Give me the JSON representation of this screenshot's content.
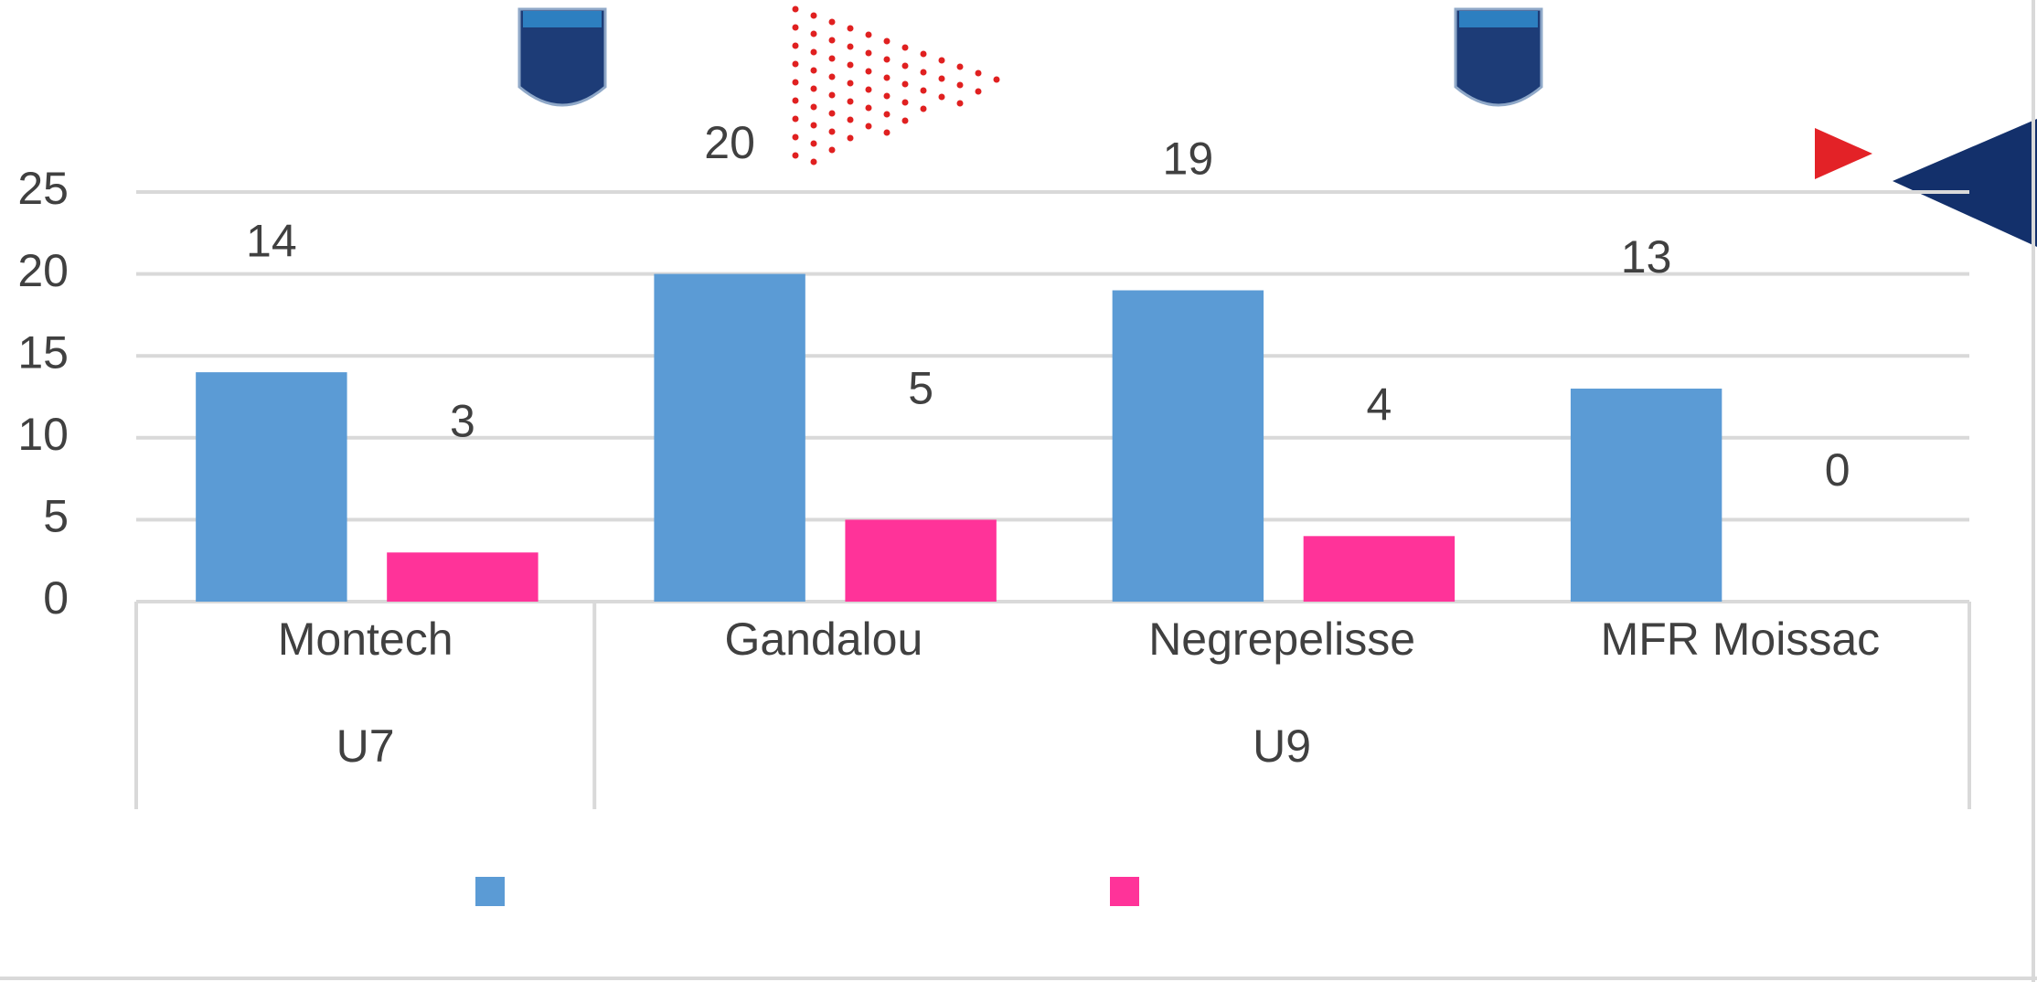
{
  "chart_data": {
    "type": "bar",
    "groups": [
      {
        "name": "U7",
        "categories": [
          "Montech"
        ]
      },
      {
        "name": "U9",
        "categories": [
          "Gandalou",
          "Negrepelisse",
          "MFR Moissac"
        ]
      }
    ],
    "series": [
      {
        "color": "#5b9bd5",
        "values": [
          14,
          20,
          19,
          13
        ]
      },
      {
        "color": "#ff3399",
        "values": [
          3,
          5,
          4,
          0
        ]
      }
    ],
    "ylim": [
      0,
      25
    ],
    "yticks": [
      0,
      5,
      10,
      15,
      20,
      25
    ],
    "grid": true,
    "legend": "bottom"
  }
}
